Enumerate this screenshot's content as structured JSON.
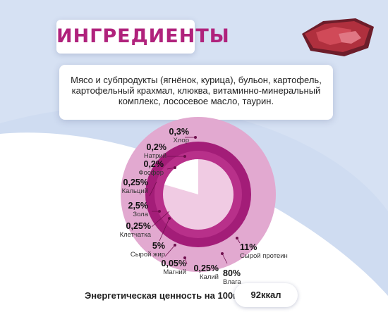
{
  "title": "ИНГРЕДИЕНТЫ",
  "ingredients": "Мясо и субпродукты (ягнёнок, курица), бульон, картофель, картофельный крахмал, клюква, витаминно-минеральный комплекс, лососевое масло, таурин.",
  "colors": {
    "accent": "#b0227c",
    "outer_ring": "#e2a9d0",
    "inner_ring": "#a31d78",
    "center": "#f0cbe3",
    "background_blue": "#cfdcf1"
  },
  "chart_data": {
    "type": "pie",
    "labels": [
      {
        "value": "0,3%",
        "name": "Хлор"
      },
      {
        "value": "0,2%",
        "name": "Натрий"
      },
      {
        "value": "0,2%",
        "name": "Фосфор"
      },
      {
        "value": "0,25%",
        "name": "Кальций"
      },
      {
        "value": "2,5%",
        "name": "Зола"
      },
      {
        "value": "0,25%",
        "name": "Клетчатка"
      },
      {
        "value": "5%",
        "name": "Сырой жир"
      },
      {
        "value": "0,05%",
        "name": "Магний"
      },
      {
        "value": "0,25%",
        "name": "Калий"
      },
      {
        "value": "80%",
        "name": "Влага"
      },
      {
        "value": "11%",
        "name": "Сырой протеин"
      }
    ]
  },
  "energy": {
    "label": "Энергетическая ценность на 100г",
    "value": "92ккал"
  }
}
